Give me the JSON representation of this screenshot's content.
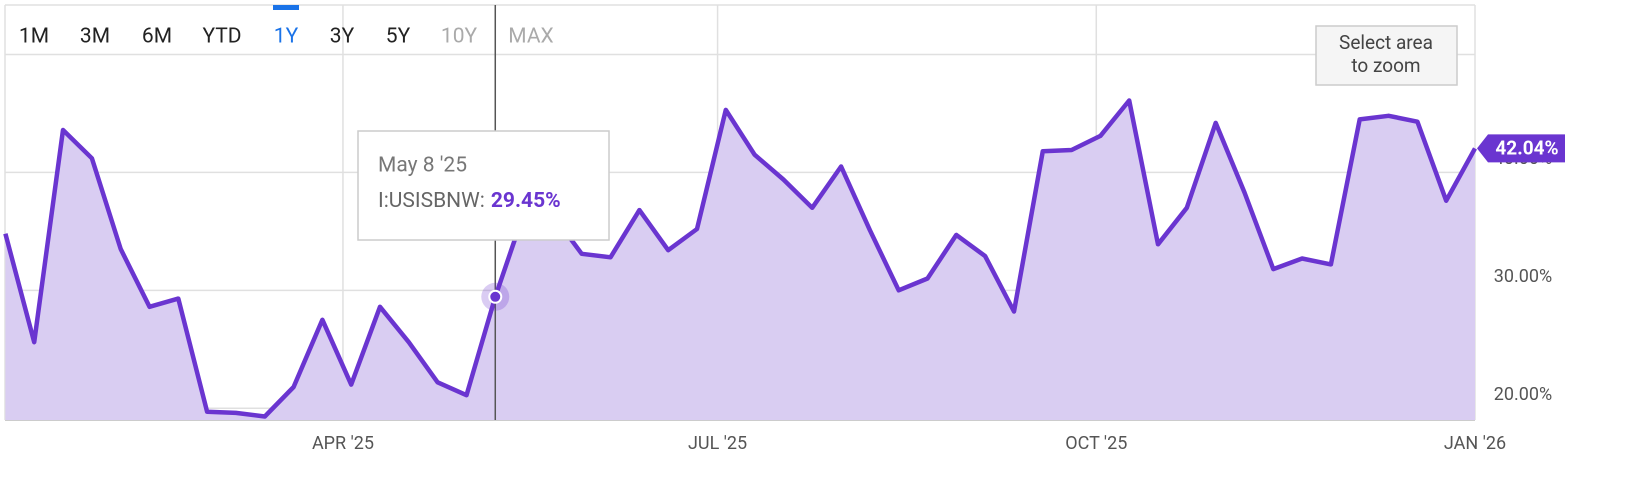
{
  "chart_data": {
    "type": "line",
    "ranges": [
      "1M",
      "3M",
      "6M",
      "YTD",
      "1Y",
      "3Y",
      "5Y",
      "10Y",
      "MAX"
    ],
    "active_range": "1Y",
    "disabled_ranges": [
      "10Y",
      "MAX"
    ],
    "zoom_hint": [
      "Select area",
      "to zoom"
    ],
    "x": [
      8,
      15,
      22,
      29,
      36,
      43,
      50,
      57,
      64,
      71,
      78,
      85,
      92,
      99,
      106,
      113,
      120,
      127,
      134,
      141,
      148,
      155,
      162,
      169,
      176,
      183,
      190,
      197,
      204,
      211,
      218,
      225,
      232,
      239,
      246,
      253,
      260,
      267,
      274,
      281,
      288,
      295,
      302,
      309,
      316,
      323,
      330,
      337,
      344,
      351,
      358,
      365
    ],
    "xlim": [
      7.9,
      365
    ],
    "xticks": [
      {
        "value": 90,
        "label": "APR '25"
      },
      {
        "value": 181,
        "label": "JUL '25"
      },
      {
        "value": 273,
        "label": "OCT '25"
      },
      {
        "value": 365,
        "label": "JAN '26"
      }
    ],
    "ylim": [
      19,
      54.2
    ],
    "yticks": [
      {
        "value": 20,
        "label": "20.00%"
      },
      {
        "value": 30,
        "label": "30.00%"
      },
      {
        "value": 40,
        "label": "40.00%"
      },
      {
        "value": 50,
        "label": null
      }
    ],
    "grid": true,
    "series": [
      {
        "name": "I:USISBNW",
        "color": "#6a35d0",
        "fill": "#d9cdf2",
        "values": [
          34.8,
          25.6,
          43.6,
          41.2,
          33.5,
          28.6,
          29.3,
          19.7,
          19.6,
          19.3,
          21.8,
          27.5,
          22.0,
          28.6,
          25.6,
          22.2,
          21.1,
          29.45,
          36.6,
          36.4,
          33.1,
          32.8,
          36.8,
          33.4,
          35.2,
          45.3,
          41.5,
          39.4,
          37.0,
          40.5,
          35.1,
          30.0,
          31.0,
          34.7,
          32.9,
          28.2,
          41.8,
          41.9,
          43.1,
          46.1,
          33.9,
          37.0,
          44.2,
          38.3,
          31.8,
          32.7,
          32.2,
          44.5,
          44.8,
          44.3,
          37.6,
          42.04
        ],
        "value_labels": [
          null,
          null,
          null,
          null,
          null,
          null,
          null,
          null,
          null,
          null,
          null,
          null,
          null,
          null,
          null,
          null,
          null,
          "29.45%",
          null,
          null,
          null,
          null,
          null,
          null,
          null,
          null,
          null,
          null,
          null,
          null,
          null,
          null,
          null,
          null,
          null,
          null,
          null,
          null,
          null,
          null,
          null,
          null,
          null,
          null,
          null,
          null,
          null,
          null,
          null,
          null,
          null,
          "42.04%"
        ]
      }
    ],
    "tooltip": {
      "index": 17,
      "title": "May 8 '25",
      "label": "I:USISBNW:"
    },
    "last_value_index": 51
  }
}
